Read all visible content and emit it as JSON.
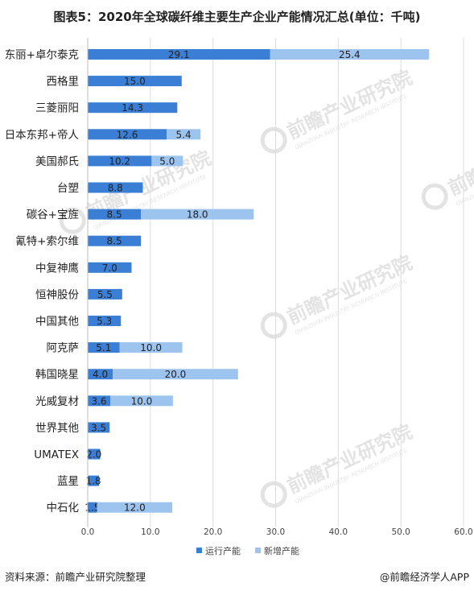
{
  "title": "图表5：2020年全球碳纤维主要生产企业产能情况汇总(单位：千吨)",
  "footer": {
    "source": "资料来源：前瞻产业研究院整理",
    "brand": "@前瞻经济学人APP"
  },
  "watermark": {
    "name": "前瞻产业研究院",
    "sub": "QIANZHAN INDUSTRY RESEARCH INSTITUTE"
  },
  "chart_data": {
    "type": "bar",
    "orientation": "horizontal",
    "stacked": true,
    "categories": [
      "东丽+卓尔泰克",
      "西格里",
      "三菱丽阳",
      "日本东邦+帝人",
      "美国郝氏",
      "台塑",
      "碳谷+宝旌",
      "氰特+索尔维",
      "中复神鹰",
      "恒神股份",
      "中国其他",
      "阿克萨",
      "韩国晓星",
      "光威复材",
      "世界其他",
      "UMATEX",
      "蓝星",
      "中石化"
    ],
    "series": [
      {
        "name": "运行产能",
        "color": "#3a7fd5",
        "values": [
          29.1,
          15.0,
          14.3,
          12.6,
          10.2,
          8.8,
          8.5,
          8.5,
          7.0,
          5.5,
          5.3,
          5.1,
          4.0,
          3.6,
          3.5,
          2.0,
          1.8,
          1.5
        ]
      },
      {
        "name": "新增产能",
        "color": "#9dc3ef",
        "values": [
          25.4,
          null,
          null,
          5.4,
          5.0,
          null,
          18.0,
          null,
          null,
          null,
          null,
          10.0,
          20.0,
          10.0,
          null,
          null,
          null,
          12.0
        ]
      }
    ],
    "xlim": [
      0,
      60
    ],
    "xticks": [
      "0.0",
      "10.0",
      "20.0",
      "30.0",
      "40.0",
      "50.0",
      "60.0"
    ],
    "grid": true,
    "legend_position": "bottom"
  }
}
